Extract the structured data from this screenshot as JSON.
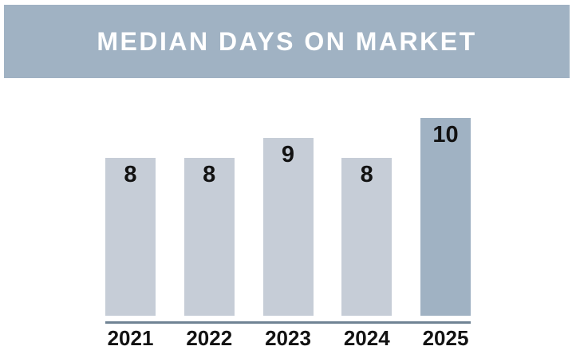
{
  "header": {
    "title": "MEDIAN DAYS ON MARKET"
  },
  "chart_data": {
    "type": "bar",
    "title": "MEDIAN DAYS ON MARKET",
    "categories": [
      "2021",
      "2022",
      "2023",
      "2024",
      "2025"
    ],
    "values": [
      8,
      8,
      9,
      8,
      10
    ],
    "bar_labels": [
      "8",
      "8",
      "9",
      "8",
      "10"
    ],
    "xlabel": "",
    "ylabel": "",
    "ylim": [
      0,
      10
    ],
    "grid": false,
    "legend": "none",
    "highlight_index": 4,
    "colors": {
      "bar": "#c6cdd7",
      "highlight": "#a0b2c3",
      "axis": "#708394",
      "label": "#121212",
      "title_bg": "#a0b2c3",
      "title_text": "#ffffff"
    }
  }
}
